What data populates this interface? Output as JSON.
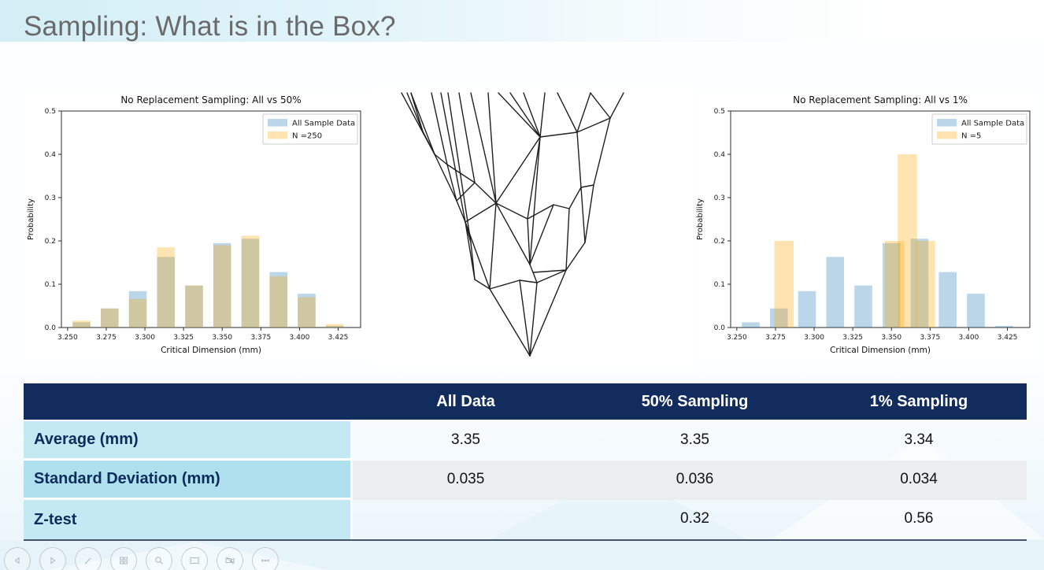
{
  "slide": {
    "title": "Sampling: What is in the Box?"
  },
  "chart_data": [
    {
      "type": "bar",
      "title": "No Replacement Sampling: All vs 50%",
      "xlabel": "Critical Dimension (mm)",
      "ylabel": "Probability",
      "xlim": [
        3.246,
        3.4395
      ],
      "ylim": [
        0,
        0.5
      ],
      "grid": false,
      "legend_position": "upper right",
      "xticks": [
        3.25,
        3.275,
        3.3,
        3.325,
        3.35,
        3.375,
        3.4,
        3.425
      ],
      "xtick_labels": [
        "3.250",
        "3.275",
        "3.300",
        "3.325",
        "3.350",
        "3.375",
        "3.400",
        "3.425"
      ],
      "yticks": [
        0,
        0.1,
        0.2,
        0.3,
        0.4,
        0.5
      ],
      "ytick_labels": [
        "0.0",
        "0.1",
        "0.2",
        "0.3",
        "0.4",
        "0.5"
      ],
      "series": [
        {
          "name": "All Sample Data",
          "color": "rgba(31,119,180,0.30)",
          "bar_width": 0.0115,
          "x": [
            3.259,
            3.2772,
            3.2954,
            3.3136,
            3.3318,
            3.35,
            3.3682,
            3.3864,
            3.4046,
            3.4228
          ],
          "values": [
            0.012,
            0.044,
            0.084,
            0.163,
            0.097,
            0.195,
            0.205,
            0.128,
            0.078,
            0.004
          ]
        },
        {
          "name": "N =250",
          "color": "rgba(255,165,0,0.30)",
          "bar_width": 0.0115,
          "x": [
            3.259,
            3.2772,
            3.2954,
            3.3136,
            3.3318,
            3.35,
            3.3682,
            3.3864,
            3.4046,
            3.4228
          ],
          "values": [
            0.016,
            0.044,
            0.066,
            0.185,
            0.097,
            0.19,
            0.212,
            0.118,
            0.07,
            0.008
          ]
        }
      ]
    },
    {
      "type": "bar",
      "title": "No Replacement Sampling: All vs 1%",
      "xlabel": "Critical Dimension (mm)",
      "ylabel": "Probability",
      "xlim": [
        3.246,
        3.4395
      ],
      "ylim": [
        0,
        0.5
      ],
      "grid": false,
      "legend_position": "upper right",
      "xticks": [
        3.25,
        3.275,
        3.3,
        3.325,
        3.35,
        3.375,
        3.4,
        3.425
      ],
      "xtick_labels": [
        "3.250",
        "3.275",
        "3.300",
        "3.325",
        "3.350",
        "3.375",
        "3.400",
        "3.425"
      ],
      "yticks": [
        0,
        0.1,
        0.2,
        0.3,
        0.4,
        0.5
      ],
      "ytick_labels": [
        "0.0",
        "0.1",
        "0.2",
        "0.3",
        "0.4",
        "0.5"
      ],
      "series": [
        {
          "name": "All Sample Data",
          "color": "rgba(31,119,180,0.30)",
          "bar_width": 0.0115,
          "x": [
            3.259,
            3.2772,
            3.2954,
            3.3136,
            3.3318,
            3.35,
            3.3682,
            3.3864,
            3.4046,
            3.4228
          ],
          "values": [
            0.012,
            0.044,
            0.084,
            0.163,
            0.097,
            0.195,
            0.205,
            0.128,
            0.078,
            0.004
          ]
        },
        {
          "name": "N =5",
          "color": "rgba(255,165,0,0.30)",
          "bar_width": 0.0125,
          "x": [
            3.2805,
            3.352,
            3.3603,
            3.372
          ],
          "values": [
            0.2,
            0.2,
            0.4,
            0.2
          ]
        }
      ]
    }
  ],
  "mesh_figure": {
    "name": "wireframe-cone-mesh",
    "stroke": "#1f1f1f",
    "segments": [
      [
        40,
        8,
        82,
        86
      ],
      [
        82,
        86,
        110,
        145
      ],
      [
        110,
        145,
        121,
        172
      ],
      [
        121,
        172,
        133,
        245
      ],
      [
        133,
        245,
        152,
        257
      ],
      [
        152,
        257,
        203,
        342
      ],
      [
        322,
        8,
        305,
        40
      ],
      [
        305,
        40,
        284,
        125
      ],
      [
        284,
        125,
        273,
        198
      ],
      [
        273,
        198,
        249,
        233
      ],
      [
        249,
        233,
        203,
        342
      ],
      [
        52,
        8,
        82,
        86
      ],
      [
        47,
        8,
        67,
        57
      ],
      [
        67,
        57,
        82,
        86
      ],
      [
        67,
        57,
        52,
        8
      ],
      [
        78,
        8,
        98,
        99
      ],
      [
        98,
        99,
        82,
        86
      ],
      [
        98,
        99,
        110,
        145
      ],
      [
        90,
        8,
        121,
        172
      ],
      [
        99,
        8,
        128,
        198
      ],
      [
        128,
        198,
        133,
        245
      ],
      [
        128,
        198,
        121,
        172
      ],
      [
        113,
        8,
        133,
        122
      ],
      [
        133,
        122,
        98,
        99
      ],
      [
        133,
        122,
        110,
        145
      ],
      [
        133,
        122,
        160,
        148
      ],
      [
        128,
        8,
        160,
        148
      ],
      [
        150,
        8,
        160,
        148
      ],
      [
        160,
        148,
        121,
        172
      ],
      [
        160,
        148,
        152,
        257
      ],
      [
        160,
        148,
        200,
        168
      ],
      [
        160,
        148,
        203,
        226
      ],
      [
        163,
        8,
        216,
        64
      ],
      [
        178,
        8,
        216,
        64
      ],
      [
        195,
        8,
        216,
        64
      ],
      [
        222,
        8,
        216,
        64
      ],
      [
        216,
        64,
        263,
        58
      ],
      [
        238,
        8,
        263,
        58
      ],
      [
        280,
        8,
        263,
        58
      ],
      [
        280,
        8,
        305,
        40
      ],
      [
        305,
        40,
        263,
        58
      ],
      [
        216,
        64,
        160,
        148
      ],
      [
        216,
        64,
        200,
        168
      ],
      [
        216,
        64,
        203,
        226
      ],
      [
        263,
        58,
        268,
        128
      ],
      [
        268,
        128,
        284,
        125
      ],
      [
        268,
        128,
        253,
        155
      ],
      [
        268,
        128,
        273,
        198
      ],
      [
        253,
        155,
        233,
        150
      ],
      [
        253,
        155,
        249,
        233
      ],
      [
        233,
        150,
        200,
        168
      ],
      [
        233,
        150,
        203,
        226
      ],
      [
        200,
        168,
        203,
        226
      ],
      [
        203,
        226,
        207,
        236
      ],
      [
        207,
        236,
        212,
        249
      ],
      [
        207,
        236,
        249,
        233
      ],
      [
        212,
        249,
        249,
        233
      ],
      [
        212,
        249,
        190,
        246
      ],
      [
        190,
        246,
        152,
        257
      ],
      [
        190,
        246,
        203,
        342
      ],
      [
        212,
        249,
        203,
        342
      ],
      [
        121,
        172,
        152,
        257
      ]
    ]
  },
  "table": {
    "headers": [
      "",
      "All Data",
      "50% Sampling",
      "1% Sampling"
    ],
    "rows": [
      {
        "label": "Average (mm)",
        "values": [
          "3.35",
          "3.35",
          "3.34"
        ]
      },
      {
        "label": "Standard Deviation (mm)",
        "values": [
          "0.035",
          "0.036",
          "0.034"
        ]
      },
      {
        "label": "Z-test",
        "values": [
          "",
          "0.32",
          "0.56"
        ]
      }
    ]
  },
  "toolbar": {
    "icons": [
      {
        "name": "previous-slide"
      },
      {
        "name": "next-slide"
      },
      {
        "name": "pen"
      },
      {
        "name": "see-all-slides"
      },
      {
        "name": "zoom"
      },
      {
        "name": "show-taskbar"
      },
      {
        "name": "camera"
      },
      {
        "name": "more-options"
      }
    ]
  },
  "colors": {
    "header_navy": "#132C5E",
    "label_cyan_light": "#C5E9F2",
    "label_cyan_dark": "#AFE0ED",
    "row_gray": "#ECEDEE",
    "bar_blue": "rgba(31,119,180,0.30)",
    "bar_orange": "rgba(255,165,0,0.30)",
    "title_gray": "#6A6A6A"
  }
}
